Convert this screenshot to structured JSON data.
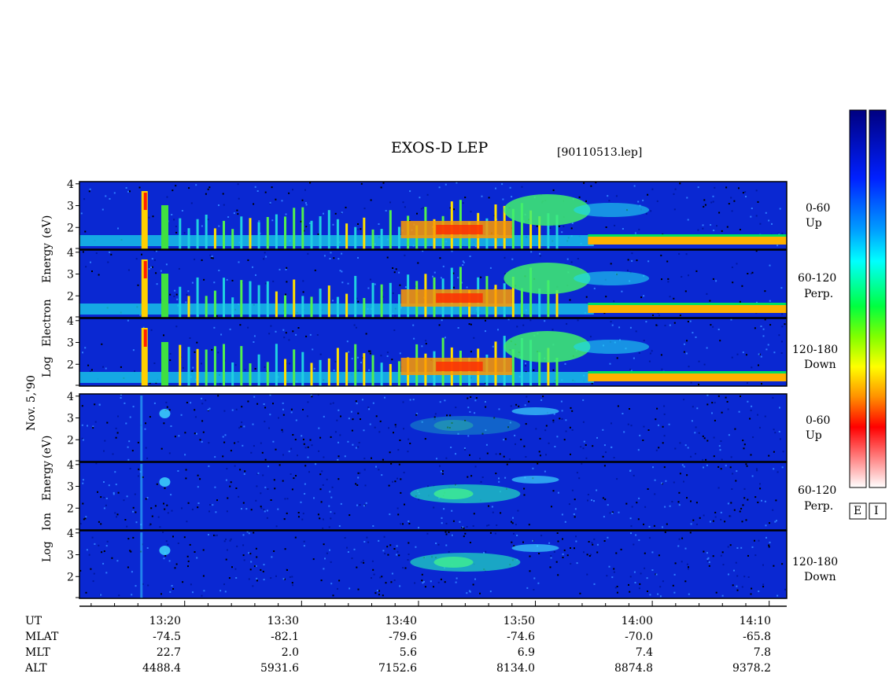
{
  "header": {
    "title": "EXOS-D LEP",
    "file": "[90110513.lep]"
  },
  "date_label": "Nov. 5,'90",
  "electron_axis": {
    "words": [
      "Log",
      "Electron",
      "Energy",
      "(eV)"
    ]
  },
  "ion_axis": {
    "words": [
      "Log",
      "Ion",
      "Energy",
      "(eV)"
    ]
  },
  "panels": [
    {
      "angle": "0-60",
      "direction": "Up"
    },
    {
      "angle": "60-120",
      "direction": "Perp."
    },
    {
      "angle": "120-180",
      "direction": "Down"
    },
    {
      "angle": "0-60",
      "direction": "Up"
    },
    {
      "angle": "60-120",
      "direction": "Perp."
    },
    {
      "angle": "120-180",
      "direction": "Down"
    }
  ],
  "colorbar": {
    "labels": [
      "E",
      "I"
    ]
  },
  "ephemeris": {
    "row_labels": [
      "UT",
      "MLAT",
      "MLT",
      "ALT"
    ],
    "columns": [
      {
        "UT": "13:20",
        "MLAT": "-74.5",
        "MLT": "22.7",
        "ALT": "4488.4"
      },
      {
        "UT": "13:30",
        "MLAT": "-82.1",
        "MLT": "2.0",
        "ALT": "5931.6"
      },
      {
        "UT": "13:40",
        "MLAT": "-79.6",
        "MLT": "5.6",
        "ALT": "7152.6"
      },
      {
        "UT": "13:50",
        "MLAT": "-74.6",
        "MLT": "6.9",
        "ALT": "8134.0"
      },
      {
        "UT": "14:00",
        "MLAT": "-70.0",
        "MLT": "7.4",
        "ALT": "8874.8"
      },
      {
        "UT": "14:10",
        "MLAT": "-65.8",
        "MLT": "7.8",
        "ALT": "9378.2"
      }
    ]
  },
  "chart_data": {
    "type": "heatmap",
    "title": "EXOS-D LEP",
    "x": {
      "label": "UT",
      "tick_labels": [
        "13:20",
        "13:30",
        "13:40",
        "13:50",
        "14:00",
        "14:10"
      ],
      "range_minutes_after_13_00": [
        11.0,
        71.5
      ],
      "tick_minutes": [
        20,
        30,
        40,
        50,
        60,
        70
      ]
    },
    "y": {
      "label": "Log Energy (eV)",
      "tick_labels": [
        "4",
        "3",
        "2"
      ],
      "ylim": [
        1,
        4.1
      ],
      "ticks": [
        4,
        3,
        2
      ]
    },
    "panels": [
      {
        "species": "Electron",
        "pitch_angle": "0-60",
        "direction": "Up"
      },
      {
        "species": "Electron",
        "pitch_angle": "60-120",
        "direction": "Perp."
      },
      {
        "species": "Electron",
        "pitch_angle": "120-180",
        "direction": "Down"
      },
      {
        "species": "Ion",
        "pitch_angle": "0-60",
        "direction": "Up"
      },
      {
        "species": "Ion",
        "pitch_angle": "60-120",
        "direction": "Perp."
      },
      {
        "species": "Ion",
        "pitch_angle": "120-180",
        "direction": "Down"
      }
    ],
    "colorscale": [
      "#ffffff",
      "#ff0000",
      "#ffa500",
      "#ffff00",
      "#00cc00",
      "#00ffff",
      "#0000ff",
      "#000080"
    ],
    "background_color": "#0a28d2"
  }
}
